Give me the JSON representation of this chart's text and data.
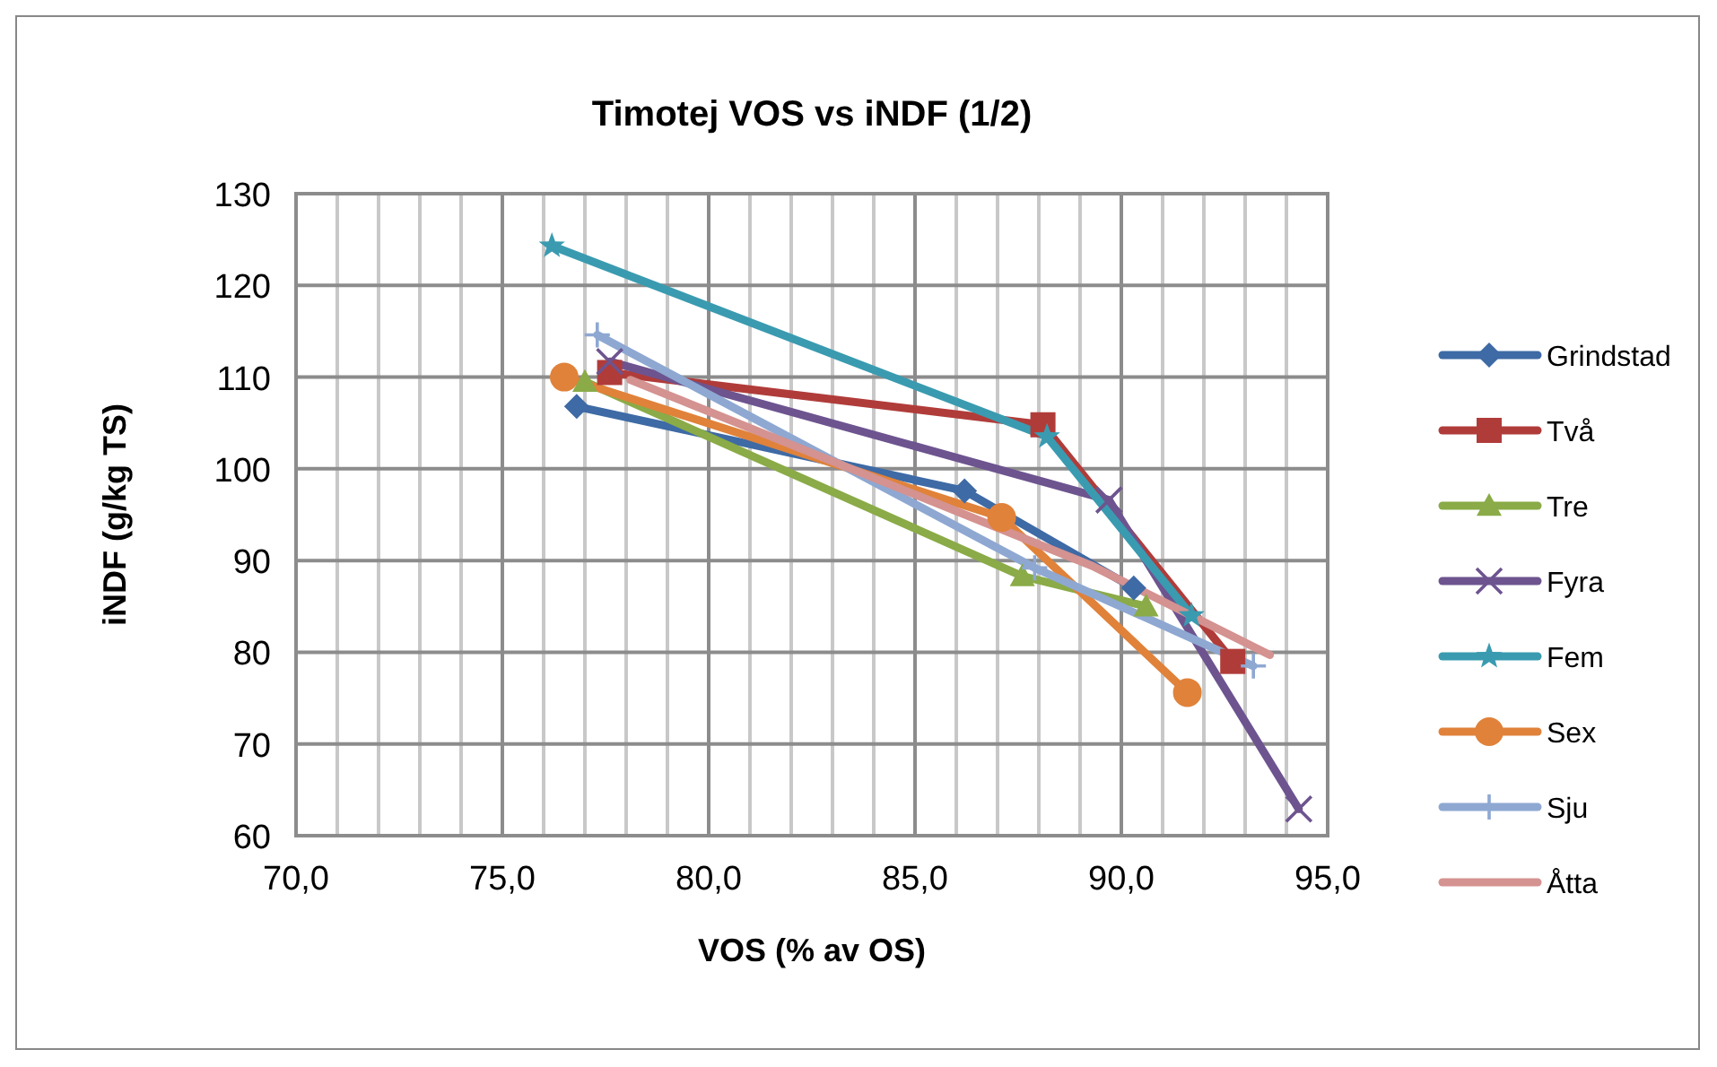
{
  "chart_data": {
    "type": "line",
    "title": "Timotej VOS vs iNDF (1/2)",
    "xlabel": "VOS (% av OS)",
    "ylabel": "iNDF (g/kg TS)",
    "xlim": [
      70,
      95
    ],
    "xticks": [
      {
        "value": 70,
        "label": "70,0"
      },
      {
        "value": 75,
        "label": "75,0"
      },
      {
        "value": 80,
        "label": "80,0"
      },
      {
        "value": 85,
        "label": "85,0"
      },
      {
        "value": 90,
        "label": "90,0"
      },
      {
        "value": 95,
        "label": "95,0"
      }
    ],
    "ylim": [
      60,
      130
    ],
    "yticks": [
      60,
      70,
      80,
      90,
      100,
      110,
      120,
      130
    ],
    "grid": true,
    "legend": "right",
    "series": [
      {
        "name": "Grindstad",
        "color": "#3e6aa5",
        "marker": "diamond",
        "x": [
          76.8,
          86.2,
          90.3
        ],
        "values": [
          106.8,
          97.6,
          87.0
        ]
      },
      {
        "name": "Två",
        "color": "#b03c3a",
        "marker": "square",
        "x": [
          77.6,
          88.1,
          92.7
        ],
        "values": [
          110.5,
          104.8,
          79.0
        ]
      },
      {
        "name": "Tre",
        "color": "#8aab47",
        "marker": "triangle",
        "x": [
          77.0,
          87.6,
          90.6
        ],
        "values": [
          109.5,
          88.3,
          85.0
        ]
      },
      {
        "name": "Fyra",
        "color": "#6d548f",
        "marker": "x",
        "x": [
          77.6,
          89.7,
          94.3
        ],
        "values": [
          111.7,
          96.6,
          62.9
        ]
      },
      {
        "name": "Fem",
        "color": "#3a9bb0",
        "marker": "star",
        "x": [
          76.2,
          88.2,
          91.7
        ],
        "values": [
          124.3,
          103.5,
          84.0
        ]
      },
      {
        "name": "Sex",
        "color": "#e0823a",
        "marker": "circle",
        "x": [
          76.5,
          87.1,
          91.6
        ],
        "values": [
          110.0,
          94.7,
          75.6
        ]
      },
      {
        "name": "Sju",
        "color": "#8ea8d2",
        "marker": "cross",
        "x": [
          77.3,
          87.9,
          93.2
        ],
        "values": [
          114.6,
          89.2,
          78.5
        ]
      },
      {
        "name": "Åtta",
        "color": "#d49290",
        "marker": "none",
        "x": [
          78.1,
          89.3,
          93.6
        ],
        "values": [
          109.7,
          89.4,
          79.7
        ]
      }
    ]
  }
}
